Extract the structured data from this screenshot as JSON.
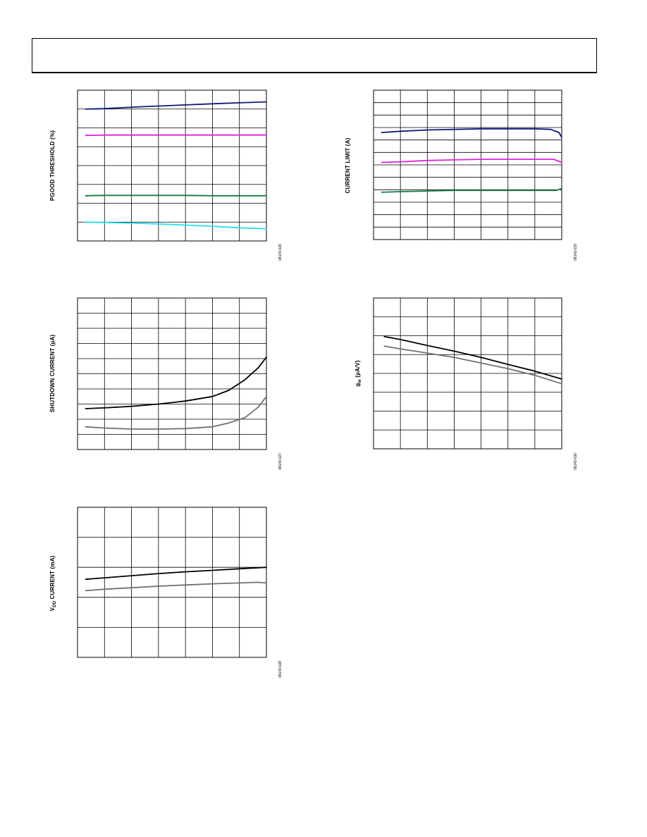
{
  "page": {
    "header_title": ""
  },
  "chart_data": [
    {
      "id": "pgood",
      "type": "line",
      "ylabel": "PGOOD THRESHOLD (%)",
      "figure_id": "08143-026",
      "grid": {
        "cols": 7,
        "rows": 8
      },
      "xlim": [
        0,
        7
      ],
      "ylim": [
        0,
        8
      ],
      "series": [
        {
          "color": "#0b1a7a",
          "x": [
            0.3,
            1,
            2,
            3,
            4,
            5,
            6,
            7
          ],
          "y": [
            7.0,
            7.02,
            7.1,
            7.16,
            7.22,
            7.28,
            7.33,
            7.38
          ]
        },
        {
          "color": "#e020e0",
          "x": [
            0.3,
            1,
            2,
            3,
            4,
            5,
            6,
            7
          ],
          "y": [
            5.6,
            5.62,
            5.62,
            5.62,
            5.62,
            5.62,
            5.62,
            5.62
          ]
        },
        {
          "color": "#157a45",
          "x": [
            0.3,
            1,
            2,
            3,
            4,
            5,
            6,
            7
          ],
          "y": [
            2.4,
            2.42,
            2.42,
            2.42,
            2.42,
            2.4,
            2.4,
            2.4
          ]
        },
        {
          "color": "#20e0f0",
          "x": [
            0.3,
            1,
            2,
            3,
            4,
            5,
            6,
            7
          ],
          "y": [
            1.0,
            0.98,
            0.95,
            0.9,
            0.84,
            0.78,
            0.7,
            0.65
          ]
        }
      ]
    },
    {
      "id": "current-limit",
      "type": "line",
      "ylabel": "CURRENT LIMIT (A)",
      "figure_id": "08143-029",
      "grid": {
        "cols": 7,
        "rows": 12
      },
      "xlim": [
        0,
        7
      ],
      "ylim": [
        0,
        12
      ],
      "series": [
        {
          "color": "#0b1a7a",
          "x": [
            0.3,
            1,
            2,
            3,
            4,
            5,
            6,
            6.6,
            6.9,
            7
          ],
          "y": [
            8.6,
            8.7,
            8.8,
            8.85,
            8.9,
            8.9,
            8.9,
            8.85,
            8.6,
            8.2
          ]
        },
        {
          "color": "#e020e0",
          "x": [
            0.3,
            1,
            2,
            3,
            4,
            5,
            6,
            6.7,
            7
          ],
          "y": [
            6.2,
            6.25,
            6.35,
            6.4,
            6.45,
            6.45,
            6.45,
            6.45,
            6.2
          ]
        },
        {
          "color": "#157a45",
          "x": [
            0.3,
            1,
            2,
            3,
            4,
            5,
            6,
            6.8,
            7
          ],
          "y": [
            3.8,
            3.85,
            3.9,
            3.95,
            3.95,
            3.95,
            3.95,
            3.95,
            4.1
          ]
        }
      ]
    },
    {
      "id": "shutdown-current",
      "type": "line",
      "ylabel": "SHUTDOWN CURRENT (µA)",
      "figure_id": "08143-027",
      "grid": {
        "cols": 7,
        "rows": 10
      },
      "xlim": [
        0,
        7
      ],
      "ylim": [
        0,
        10
      ],
      "series": [
        {
          "color": "#000000",
          "x": [
            0.3,
            1,
            2,
            3,
            4,
            5,
            5.6,
            6.2,
            6.7,
            7
          ],
          "y": [
            2.7,
            2.75,
            2.85,
            3.0,
            3.2,
            3.5,
            3.9,
            4.6,
            5.4,
            6.1
          ]
        },
        {
          "color": "#707070",
          "x": [
            0.3,
            1,
            2,
            3,
            4,
            5,
            5.6,
            6.2,
            6.7,
            7
          ],
          "y": [
            1.5,
            1.42,
            1.35,
            1.35,
            1.38,
            1.5,
            1.75,
            2.1,
            2.8,
            3.5
          ]
        }
      ]
    },
    {
      "id": "gm",
      "type": "line",
      "ylabel": "gm (µA/V)",
      "figure_id": "08143-030",
      "grid": {
        "cols": 7,
        "rows": 8
      },
      "xlim": [
        0,
        7
      ],
      "ylim": [
        0,
        8
      ],
      "series": [
        {
          "color": "#000000",
          "x": [
            0.4,
            1,
            2,
            3,
            4,
            5,
            6,
            7
          ],
          "y": [
            5.95,
            5.8,
            5.48,
            5.18,
            4.85,
            4.48,
            4.12,
            3.7
          ]
        },
        {
          "color": "#707070",
          "x": [
            0.4,
            1,
            2,
            3,
            4,
            5,
            6,
            7
          ],
          "y": [
            5.45,
            5.3,
            5.08,
            4.85,
            4.55,
            4.25,
            3.9,
            3.45
          ]
        }
      ]
    },
    {
      "id": "vdd-current",
      "type": "line",
      "ylabel": "VDD CURRENT (mA)",
      "figure_id": "08143-028",
      "grid": {
        "cols": 7,
        "rows": 5
      },
      "xlim": [
        0,
        7
      ],
      "ylim": [
        0,
        5
      ],
      "series": [
        {
          "color": "#000000",
          "x": [
            0.3,
            1,
            2,
            3,
            4,
            5,
            6,
            7
          ],
          "y": [
            2.6,
            2.65,
            2.72,
            2.79,
            2.85,
            2.9,
            2.95,
            3.0
          ]
        },
        {
          "color": "#707070",
          "x": [
            0.3,
            1,
            2,
            3,
            4,
            5,
            6,
            6.7,
            7
          ],
          "y": [
            2.22,
            2.27,
            2.32,
            2.37,
            2.41,
            2.45,
            2.48,
            2.5,
            2.48
          ]
        }
      ]
    }
  ]
}
